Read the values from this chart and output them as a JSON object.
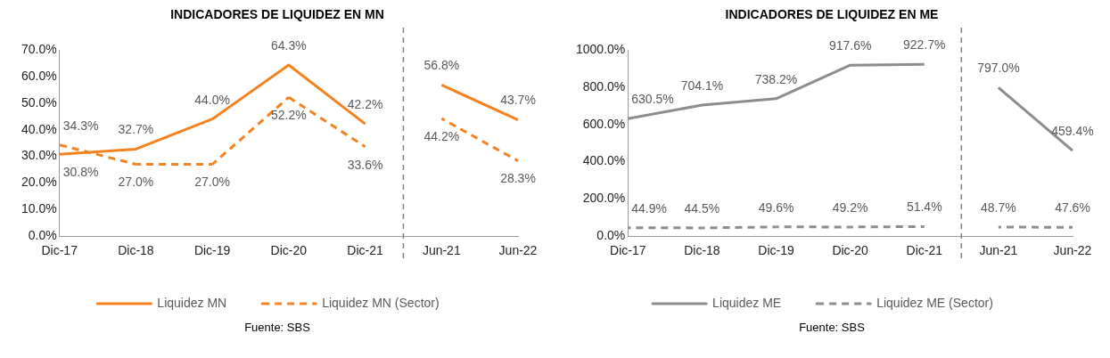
{
  "chart_data": [
    {
      "type": "line",
      "title": "INDICADORES DE LIQUIDEZ EN MN",
      "categories": [
        "Dic-17",
        "Dic-18",
        "Dic-19",
        "Dic-20",
        "Dic-21",
        "Jun-21",
        "Jun-22"
      ],
      "series": [
        {
          "name": "Liquidez MN",
          "color": "#f58220",
          "line_style": "solid",
          "values": [
            30.8,
            32.7,
            44.0,
            64.3,
            42.2,
            56.8,
            43.7
          ],
          "value_labels": [
            "30.8%",
            "32.7%",
            "44.0%",
            "64.3%",
            "42.2%",
            "56.8%",
            "43.7%"
          ]
        },
        {
          "name": "Liquidez MN (Sector)",
          "color": "#f58220",
          "line_style": "dashed",
          "values": [
            34.3,
            27.0,
            27.0,
            52.2,
            33.6,
            44.2,
            28.3
          ],
          "value_labels": [
            "34.3%",
            "27.0%",
            "27.0%",
            "52.2%",
            "33.6%",
            "44.2%",
            "28.3%"
          ]
        }
      ],
      "ylim": [
        0,
        70
      ],
      "yticks": [
        {
          "value": 0,
          "label": "0.0%"
        },
        {
          "value": 10,
          "label": "10.0%"
        },
        {
          "value": 20,
          "label": "20.0%"
        },
        {
          "value": 30,
          "label": "30.0%"
        },
        {
          "value": 40,
          "label": "40.0%"
        },
        {
          "value": 50,
          "label": "50.0%"
        },
        {
          "value": 60,
          "label": "60.0%"
        },
        {
          "value": 70,
          "label": "70.0%"
        }
      ],
      "grid": false,
      "legend": "bottom",
      "marker": "none",
      "annotations": [
        "Fuente: SBS"
      ]
    },
    {
      "type": "line",
      "title": "INDICADORES DE LIQUIDEZ EN ME",
      "categories": [
        "Dic-17",
        "Dic-18",
        "Dic-19",
        "Dic-20",
        "Dic-21",
        "Jun-21",
        "Jun-22"
      ],
      "series": [
        {
          "name": "Liquidez ME",
          "color": "#8c8c8c",
          "line_style": "solid",
          "values": [
            630.5,
            704.1,
            738.2,
            917.6,
            922.7,
            797.0,
            459.4
          ],
          "value_labels": [
            "630.5%",
            "704.1%",
            "738.2%",
            "917.6%",
            "922.7%",
            "797.0%",
            "459.4%"
          ]
        },
        {
          "name": "Liquidez ME (Sector)",
          "color": "#8c8c8c",
          "line_style": "dashed",
          "values": [
            44.9,
            44.5,
            49.6,
            49.2,
            51.4,
            48.7,
            47.6
          ],
          "value_labels": [
            "44.9%",
            "44.5%",
            "49.6%",
            "49.2%",
            "51.4%",
            "48.7%",
            "47.6%"
          ]
        }
      ],
      "ylim": [
        0,
        1000
      ],
      "yticks": [
        {
          "value": 0,
          "label": "0.0%"
        },
        {
          "value": 200,
          "label": "200.0%"
        },
        {
          "value": 400,
          "label": "400.0%"
        },
        {
          "value": 600,
          "label": "600.0%"
        },
        {
          "value": 800,
          "label": "800.0%"
        },
        {
          "value": 1000,
          "label": "1000.0%"
        }
      ],
      "grid": false,
      "legend": "bottom",
      "marker": "none",
      "annotations": [
        "Fuente: SBS"
      ]
    }
  ]
}
